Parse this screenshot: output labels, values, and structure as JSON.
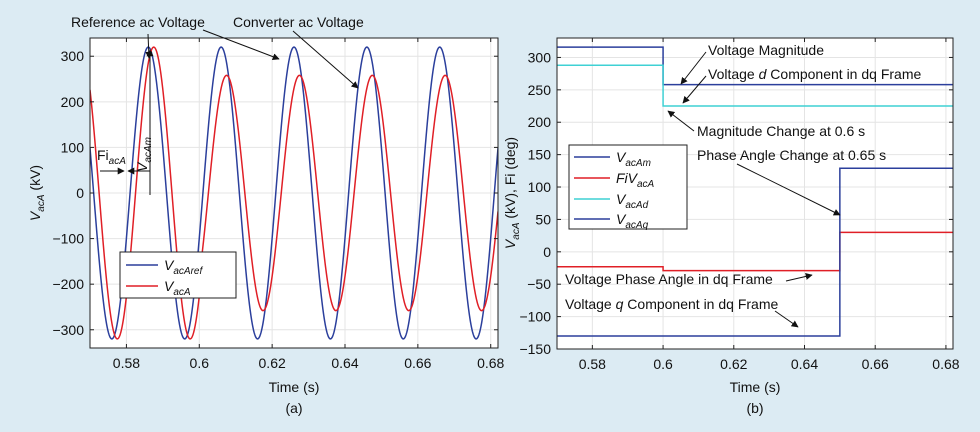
{
  "chart_data": [
    {
      "type": "line",
      "panel_label": "(a)",
      "xlabel": "Time (s)",
      "ylabel": {
        "main": "V",
        "sub": "acA",
        "unit": " (kV)"
      },
      "xlim": [
        0.57,
        0.682
      ],
      "ylim": [
        -340,
        340
      ],
      "xticks": [
        0.58,
        0.6,
        0.62,
        0.64,
        0.66,
        0.68
      ],
      "xtick_labels": [
        "0.58",
        "0.6",
        "0.62",
        "0.64",
        "0.66",
        "0.68"
      ],
      "yticks": [
        -300,
        -200,
        -100,
        0,
        100,
        200,
        300
      ],
      "ytick_labels": [
        "−300",
        "−200",
        "−100",
        "0",
        "100",
        "200",
        "300"
      ],
      "grid": true,
      "legend_position": "lower-left",
      "series": [
        {
          "name": {
            "main": "V",
            "sub": "acAref"
          },
          "color": "#2b3f9c",
          "amplitude_kV": 320,
          "frequency_Hz": 50,
          "peak_time_s": 0.586
        },
        {
          "name": {
            "main": "V",
            "sub": "acA"
          },
          "color": "#e01f26",
          "amplitude_kV": 258,
          "frequency_Hz": 50,
          "peak_time_s": 0.5875,
          "amplitude_before_0_6s_kV": 320,
          "peak_time_after_0_65s_s": 0.6475
        }
      ],
      "annotations": {
        "reference": "Reference ac Voltage",
        "converter": "Converter ac Voltage",
        "fi": {
          "main": "Fi",
          "sub": "acA"
        },
        "vm": {
          "main": "V",
          "sub": "acAm"
        }
      }
    },
    {
      "type": "line",
      "panel_label": "(b)",
      "xlabel": "Time (s)",
      "ylabel": {
        "p1": "V",
        "s1": "acA",
        "p2": " (kV), Fi (deg)"
      },
      "xlim": [
        0.57,
        0.682
      ],
      "ylim": [
        -150,
        330
      ],
      "xticks": [
        0.58,
        0.6,
        0.62,
        0.64,
        0.66,
        0.68
      ],
      "xtick_labels": [
        "0.58",
        "0.6",
        "0.62",
        "0.64",
        "0.66",
        "0.68"
      ],
      "yticks": [
        -150,
        -100,
        -50,
        0,
        50,
        100,
        150,
        200,
        250,
        300
      ],
      "ytick_labels": [
        "−150",
        "−100",
        "−50",
        "0",
        "50",
        "100",
        "150",
        "200",
        "250",
        "300"
      ],
      "grid": true,
      "legend_position": "middle-left",
      "series": [
        {
          "name": {
            "main": "V",
            "sub": "acAm"
          },
          "color": "#2b3f9c",
          "x": [
            0.57,
            0.6,
            0.6,
            0.682
          ],
          "y": [
            316,
            316,
            258,
            258
          ]
        },
        {
          "name": {
            "main": "FiV",
            "sub": "acA"
          },
          "color": "#e01f26",
          "x": [
            0.57,
            0.6,
            0.6,
            0.65,
            0.65,
            0.682
          ],
          "y": [
            -23,
            -23,
            -29,
            -29,
            30,
            30
          ]
        },
        {
          "name": {
            "main": "V",
            "sub": "acAd"
          },
          "color": "#3fd1d4",
          "x": [
            0.57,
            0.6,
            0.6,
            0.682
          ],
          "y": [
            288,
            288,
            225,
            225
          ]
        },
        {
          "name": {
            "main": "V",
            "sub": "acAq"
          },
          "color": "#2b3f9c",
          "x": [
            0.57,
            0.65,
            0.65,
            0.682
          ],
          "y": [
            -130,
            -130,
            129,
            129
          ]
        }
      ],
      "annotations": {
        "magnitude": "Voltage Magnitude",
        "d_component": {
          "pre": "Voltage ",
          "it": "d",
          "post": " Component in dq Frame"
        },
        "mag_change": "Magnitude Change at 0.6 s",
        "phase_change": "Phase Angle Change at 0.65 s",
        "phase_angle": "Voltage Phase Angle in dq Frame",
        "q_component": {
          "pre": "Voltage ",
          "it": "q",
          "post": " Component in dq Frame"
        }
      }
    }
  ]
}
